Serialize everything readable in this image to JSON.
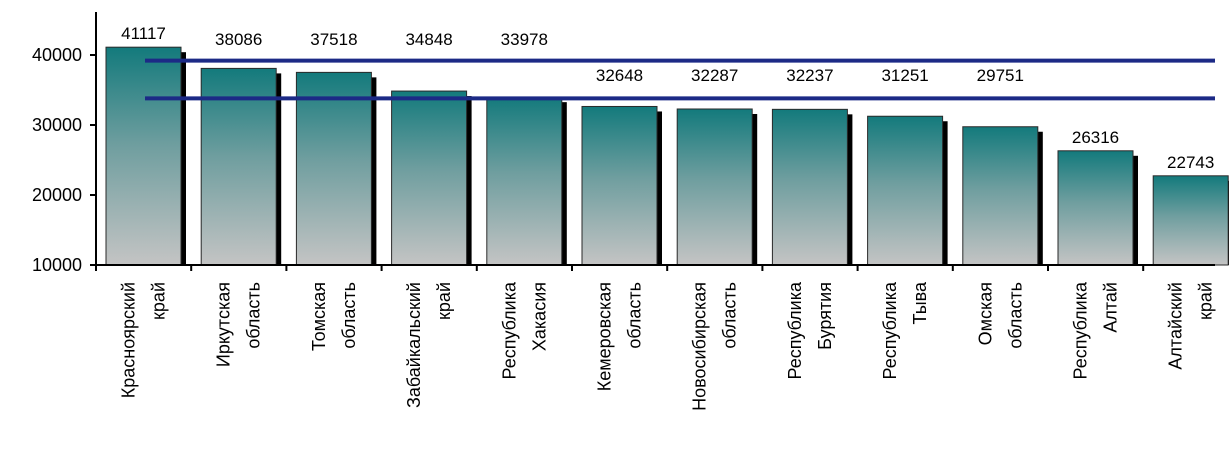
{
  "chart_data": {
    "type": "bar",
    "categories": [
      [
        "Красноярский",
        "край"
      ],
      [
        "Иркутская",
        "область"
      ],
      [
        "Томская",
        "область"
      ],
      [
        "Забайкальский",
        "край"
      ],
      [
        "Республика",
        "Хакасия"
      ],
      [
        "Кемеровская",
        "область"
      ],
      [
        "Новосибирская",
        "область"
      ],
      [
        "Республика",
        "Бурятия"
      ],
      [
        "Республика",
        "Тыва"
      ],
      [
        "Омская",
        "область"
      ],
      [
        "Республика",
        "Алтай"
      ],
      [
        "Алтайский",
        "край"
      ]
    ],
    "values": [
      41117,
      38086,
      37518,
      34848,
      33978,
      32648,
      32287,
      32237,
      31251,
      29751,
      26316,
      22743
    ],
    "value_labels": [
      "41117",
      "38086",
      "37518",
      "34848",
      "33978",
      "32648",
      "32287",
      "32237",
      "31251",
      "29751",
      "26316",
      "22743"
    ],
    "yticks": [
      10000,
      20000,
      30000,
      40000
    ],
    "ytick_labels": [
      "10000",
      "20000",
      "30000",
      "40000"
    ],
    "ylim": [
      10000,
      43500
    ],
    "reference_lines": [
      39200,
      33800
    ],
    "grid": false,
    "legend": "none",
    "colors": {
      "bar_top": "#137a7c",
      "bar_bottom": "#c4c4c4",
      "bar_shadow": "#000000",
      "reference_line": "#1c2a86",
      "axis": "#000000"
    }
  }
}
